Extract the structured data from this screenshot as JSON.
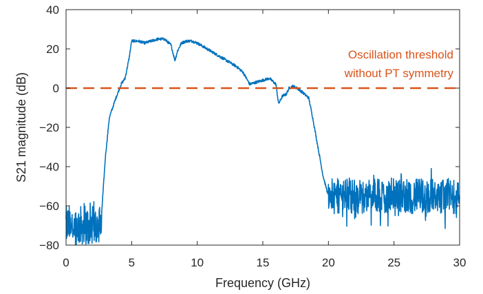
{
  "chart_data": {
    "type": "line",
    "title": "",
    "xlabel": "Frequency (GHz)",
    "ylabel": "S21 magnitude (dB)",
    "xlim": [
      0,
      30
    ],
    "ylim": [
      -80,
      40
    ],
    "xticks": [
      0,
      5,
      10,
      15,
      20,
      25,
      30
    ],
    "yticks": [
      -80,
      -60,
      -40,
      -20,
      0,
      20,
      40
    ],
    "xtick_labels": [
      "0",
      "5",
      "10",
      "15",
      "20",
      "25",
      "30"
    ],
    "ytick_labels": [
      "−80",
      "−60",
      "−40",
      "−20",
      "0",
      "20",
      "40"
    ],
    "grid": false,
    "series": [
      {
        "color": "#0072BD",
        "x": [
          0,
          2.7,
          2.75,
          3.0,
          3.3,
          3.6,
          3.8,
          4.2,
          4.5,
          4.8,
          5.0,
          5.5,
          6.0,
          6.5,
          7.0,
          7.5,
          8.0,
          8.3,
          8.5,
          8.8,
          9.2,
          9.6,
          10.0,
          10.5,
          11.0,
          11.5,
          12.0,
          12.5,
          13.0,
          13.5,
          14.0,
          14.5,
          15.0,
          15.5,
          16.0,
          16.2,
          16.5,
          16.8,
          17.0,
          17.3,
          17.6,
          18.0,
          18.5,
          18.8,
          19.2,
          19.6,
          20.0,
          30.0
        ],
        "y": [
          -65,
          -65,
          -60,
          -35,
          -15,
          -9,
          -5,
          2,
          5,
          15,
          24,
          24,
          23,
          24,
          25,
          25,
          22,
          14,
          19,
          23,
          24,
          24,
          23,
          21,
          19,
          17,
          15,
          13,
          11,
          8,
          2,
          3,
          4,
          5,
          2,
          -8,
          -4,
          -3,
          0,
          1,
          0,
          -2,
          -5,
          -15,
          -30,
          -45,
          -55,
          -55
        ],
        "noise_band_low": [
          [
            0,
            2.7,
            -70,
            10
          ],
          [
            20,
            30,
            -55,
            9
          ]
        ]
      },
      {
        "color": "#D95319",
        "style": "dashed",
        "x": [
          0,
          30
        ],
        "y": [
          0,
          0
        ]
      }
    ],
    "annotations": [
      {
        "line1": "Oscillation threshold",
        "line2": "without PT symmetry",
        "color": "#D95319",
        "position": "top-right"
      }
    ]
  }
}
